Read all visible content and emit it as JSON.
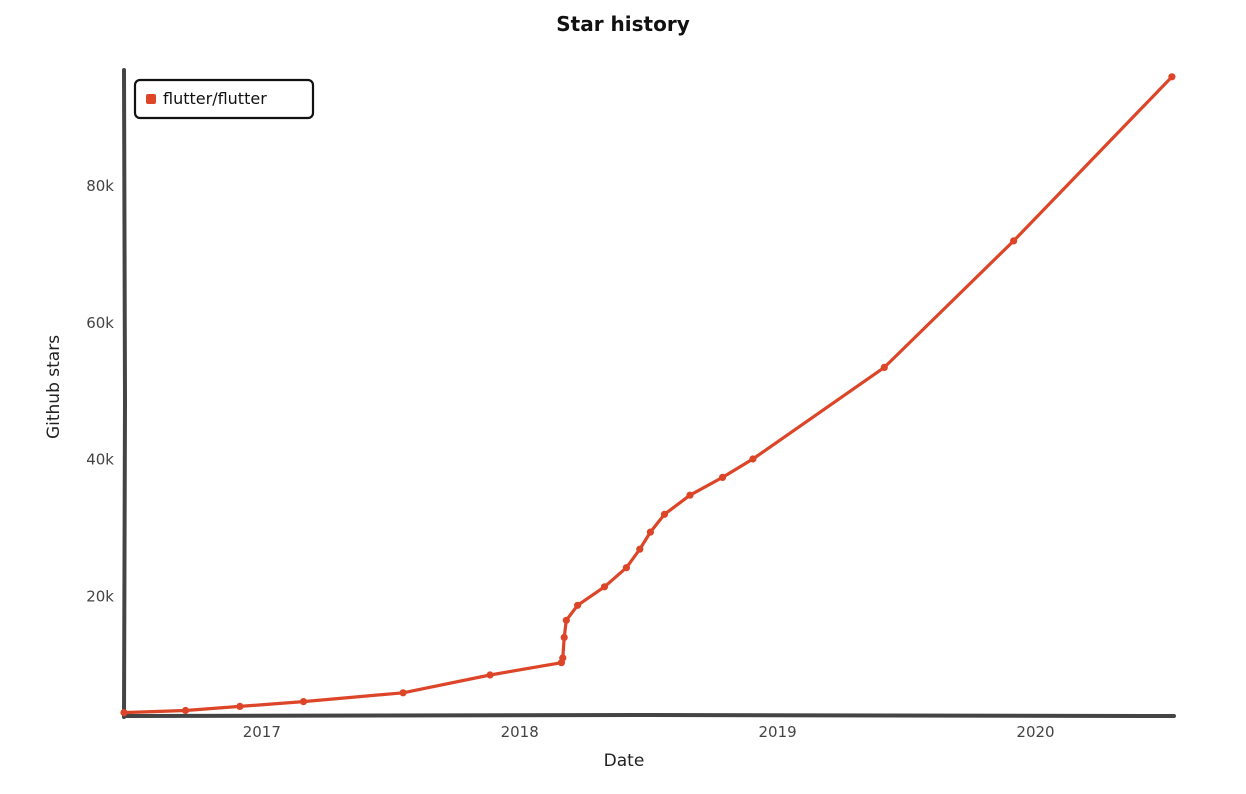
{
  "chart_data": {
    "type": "line",
    "title": "Star history",
    "xlabel": "Date",
    "ylabel": "Github stars",
    "x_axis_type": "date",
    "xlim": [
      "2016-06-20",
      "2020-07-15"
    ],
    "ylim": [
      2500,
      97000
    ],
    "x_ticks": [
      {
        "value": "2017-01-01",
        "label": "2017"
      },
      {
        "value": "2018-01-01",
        "label": "2018"
      },
      {
        "value": "2019-01-01",
        "label": "2019"
      },
      {
        "value": "2020-01-01",
        "label": "2020"
      }
    ],
    "y_ticks": [
      {
        "value": 20000,
        "label": "20k"
      },
      {
        "value": 40000,
        "label": "40k"
      },
      {
        "value": 60000,
        "label": "60k"
      },
      {
        "value": 80000,
        "label": "80k"
      }
    ],
    "grid": false,
    "legend_position": "top-left",
    "colors": {
      "series": "#dd4528",
      "axis": "#444444",
      "legend_border": "#111111"
    },
    "series": [
      {
        "name": "flutter/flutter",
        "points": [
          {
            "x": "2016-06-20",
            "y": 3000
          },
          {
            "x": "2016-09-15",
            "y": 3300
          },
          {
            "x": "2016-12-01",
            "y": 3900
          },
          {
            "x": "2017-03-01",
            "y": 4600
          },
          {
            "x": "2017-07-20",
            "y": 5900
          },
          {
            "x": "2017-11-20",
            "y": 8500
          },
          {
            "x": "2018-03-01",
            "y": 10300
          },
          {
            "x": "2018-03-03",
            "y": 11000
          },
          {
            "x": "2018-03-05",
            "y": 14000
          },
          {
            "x": "2018-03-08",
            "y": 16500
          },
          {
            "x": "2018-03-24",
            "y": 18700
          },
          {
            "x": "2018-05-01",
            "y": 21400
          },
          {
            "x": "2018-06-01",
            "y": 24200
          },
          {
            "x": "2018-06-20",
            "y": 26900
          },
          {
            "x": "2018-07-05",
            "y": 29400
          },
          {
            "x": "2018-07-25",
            "y": 32000
          },
          {
            "x": "2018-08-30",
            "y": 34800
          },
          {
            "x": "2018-10-15",
            "y": 37400
          },
          {
            "x": "2018-11-27",
            "y": 40100
          },
          {
            "x": "2019-06-01",
            "y": 53500
          },
          {
            "x": "2019-12-01",
            "y": 72000
          },
          {
            "x": "2020-07-12",
            "y": 96000
          }
        ]
      }
    ]
  }
}
